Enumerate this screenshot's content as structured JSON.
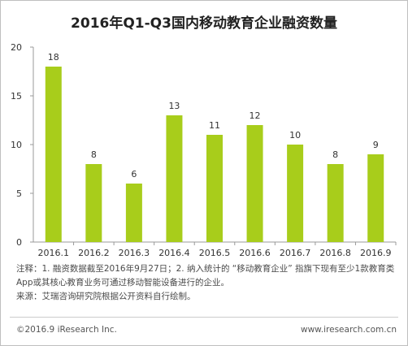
{
  "chart_data": {
    "type": "bar",
    "title": "2016年Q1-Q3国内移动教育企业融资数量",
    "categories": [
      "2016.1",
      "2016.2",
      "2016.3",
      "2016.4",
      "2016.5",
      "2016.6",
      "2016.7",
      "2016.8",
      "2016.9"
    ],
    "values": [
      18,
      8,
      6,
      13,
      11,
      12,
      10,
      8,
      9
    ],
    "ylim": [
      0,
      20
    ],
    "yticks": [
      0,
      5,
      10,
      15,
      20
    ],
    "grid": false,
    "bar_color": "#a8cd1b",
    "xlabel": "",
    "ylabel": ""
  },
  "notes": {
    "line1": "注释：1. 融资数据截至2016年9月27日；2. 纳入统计的 “移动教育企业” 指旗下现有至少1款教育类",
    "line2": "App或其核心教育业务可通过移动智能设备进行的企业。",
    "line3": "来源：艾瑞咨询研究院根据公开资料自行绘制。"
  },
  "footer": {
    "copyright": "©2016.9 iResearch Inc.",
    "website": "www.iresearch.com.cn"
  }
}
